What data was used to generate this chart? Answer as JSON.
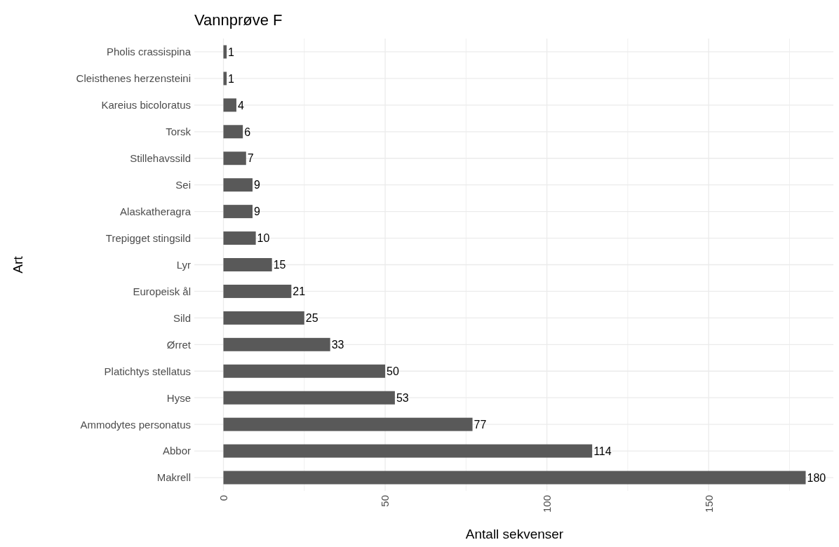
{
  "chart_data": {
    "type": "bar",
    "orientation": "horizontal",
    "title": "Vannprøve F",
    "xlabel": "Antall sekvenser",
    "ylabel": "Art",
    "categories": [
      "Pholis crassispina",
      "Cleisthenes herzensteini",
      "Kareius bicoloratus",
      "Torsk",
      "Stillehavssild",
      "Sei",
      "Alaskatheragra",
      "Trepigget stingsild",
      "Lyr",
      "Europeisk ål",
      "Sild",
      "Ørret",
      "Platichtys stellatus",
      "Hyse",
      "Ammodytes personatus",
      "Abbor",
      "Makrell"
    ],
    "values": [
      1,
      1,
      4,
      6,
      7,
      9,
      9,
      10,
      15,
      21,
      25,
      33,
      50,
      53,
      77,
      114,
      180
    ],
    "color": "#595959",
    "data_labels": true,
    "grid": true,
    "xlim": [
      -9,
      189
    ],
    "xticks": [
      0,
      {
        "value": 25,
        "label": null
      },
      50,
      {
        "value": 75,
        "label": null
      },
      100,
      {
        "value": 125,
        "label": null
      },
      150,
      {
        "value": 175,
        "label": null
      }
    ]
  }
}
